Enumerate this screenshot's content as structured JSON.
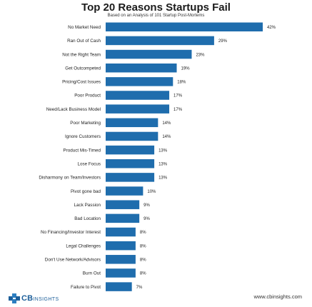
{
  "chart_data": {
    "type": "bar",
    "orientation": "horizontal",
    "title": "Top 20 Reasons Startups Fail",
    "subtitle": "Based on an Analysis of 101 Startup Post-Mortems",
    "categories": [
      "No Market Need",
      "Ran Out of Cash",
      "Not the Right Team",
      "Get Outcompeted",
      "Pricing/Cost Issues",
      "Poor Product",
      "Need/Lack Business Model",
      "Poor Marketing",
      "Ignore Customers",
      "Product Mis-Timed",
      "Lose Focus",
      "Disharmony on Team/Investors",
      "Pivot gone bad",
      "Lack Passion",
      "Bad Location",
      "No Financing/Investor Interest",
      "Legal Challenges",
      "Don't Use Network/Advisors",
      "Burn Out",
      "Failure to Pivot"
    ],
    "values": [
      42,
      29,
      23,
      19,
      18,
      17,
      17,
      14,
      14,
      13,
      13,
      13,
      10,
      9,
      9,
      8,
      8,
      8,
      8,
      7
    ],
    "value_labels": [
      "42%",
      "29%",
      "23%",
      "19%",
      "18%",
      "17%",
      "17%",
      "14%",
      "14%",
      "13%",
      "13%",
      "13%",
      "10%",
      "9%",
      "9%",
      "8%",
      "8%",
      "8%",
      "8%",
      "7%"
    ],
    "unit": "%",
    "grid": false,
    "legend": "none",
    "bar_color": "#1f6dad",
    "xlim": [
      0,
      42
    ]
  },
  "branding": {
    "logo_text": "CB",
    "logo_text_light": "INSIGHTS",
    "logo_icon": "cb-insights-logo-icon",
    "source_url": "www.cbinsights.com",
    "brand_color": "#1d5f9a"
  }
}
